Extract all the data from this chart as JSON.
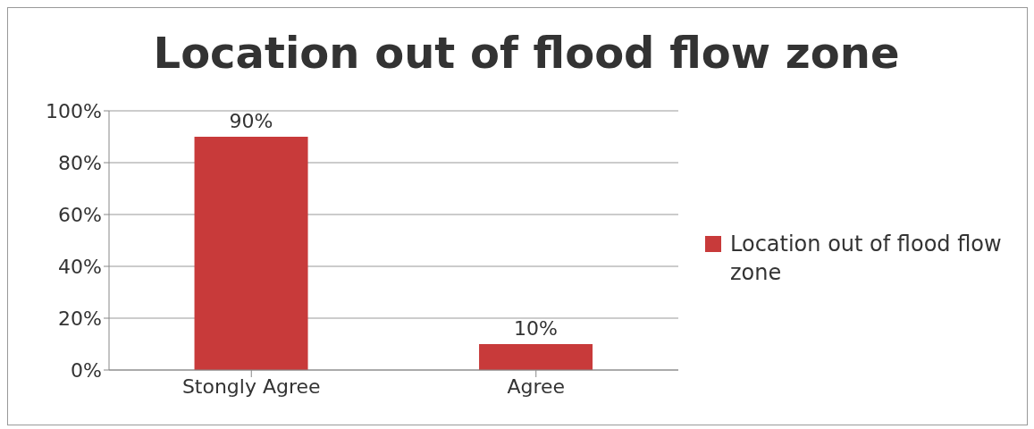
{
  "chart_data": {
    "type": "bar",
    "title": "Location out of flood flow zone",
    "categories": [
      "Stongly Agree",
      "Agree"
    ],
    "series": [
      {
        "name": "Location out of flood flow zone",
        "color": "#c83a3a",
        "values": [
          90,
          10
        ],
        "value_labels": [
          "90%",
          "10%"
        ]
      }
    ],
    "ylim": [
      0,
      100
    ],
    "yticks": [
      {
        "value": 0,
        "label": "0%"
      },
      {
        "value": 20,
        "label": "20%"
      },
      {
        "value": 40,
        "label": "40%"
      },
      {
        "value": 60,
        "label": "60%"
      },
      {
        "value": 80,
        "label": "80%"
      },
      {
        "value": 100,
        "label": "100%"
      }
    ],
    "grid": "y",
    "legend": "right"
  }
}
